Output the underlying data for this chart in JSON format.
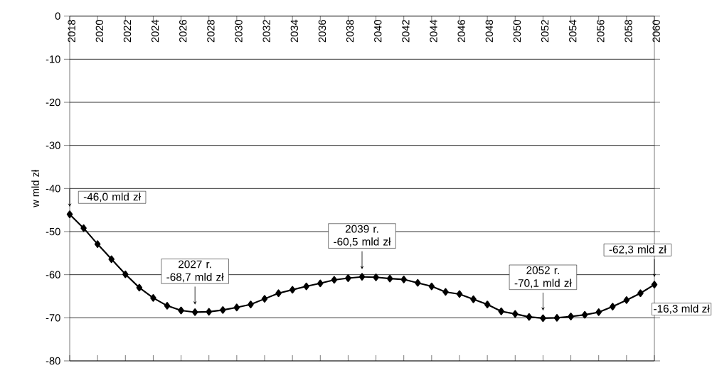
{
  "chart_data": {
    "type": "line",
    "ylabel": "w mld zł",
    "x": [
      2018,
      2019,
      2020,
      2021,
      2022,
      2023,
      2024,
      2025,
      2026,
      2027,
      2028,
      2029,
      2030,
      2031,
      2032,
      2033,
      2034,
      2035,
      2036,
      2037,
      2038,
      2039,
      2040,
      2041,
      2042,
      2043,
      2044,
      2045,
      2046,
      2047,
      2048,
      2049,
      2050,
      2051,
      2052,
      2053,
      2054,
      2055,
      2056,
      2057,
      2058,
      2059,
      2060
    ],
    "series": [
      {
        "color": "#000000",
        "values": [
          -46.0,
          -49.2,
          -52.9,
          -56.4,
          -59.9,
          -63.0,
          -65.4,
          -67.2,
          -68.3,
          -68.7,
          -68.6,
          -68.2,
          -67.6,
          -66.9,
          -65.6,
          -64.3,
          -63.5,
          -62.7,
          -62.0,
          -61.2,
          -60.8,
          -60.5,
          -60.6,
          -60.9,
          -61.1,
          -61.9,
          -62.7,
          -64.0,
          -64.5,
          -65.7,
          -66.9,
          -68.5,
          -69.1,
          -69.8,
          -70.1,
          -70.0,
          -69.7,
          -69.3,
          -68.7,
          -67.4,
          -65.9,
          -64.3,
          -62.3
        ]
      }
    ],
    "xlim": [
      2018,
      2060
    ],
    "ylim": [
      -80,
      0
    ],
    "xticks": [
      2018,
      2020,
      2022,
      2024,
      2026,
      2028,
      2030,
      2032,
      2034,
      2036,
      2038,
      2040,
      2042,
      2044,
      2046,
      2048,
      2050,
      2052,
      2054,
      2056,
      2058,
      2060
    ],
    "yticks": [
      0,
      -10,
      -20,
      -30,
      -40,
      -50,
      -60,
      -70,
      -80
    ],
    "grid": "y",
    "marker": "diamond",
    "line_style": "solid",
    "annotations": [
      {
        "text": "-46,0 mld zł",
        "x": 2018,
        "y": -46.0
      },
      {
        "text": "2027 r. -68,7 mld zł",
        "x": 2027,
        "y": -68.7
      },
      {
        "text": "2039 r. -60,5 mld zł",
        "x": 2039,
        "y": -60.5
      },
      {
        "text": "2052 r. -70,1 mld zł",
        "x": 2052,
        "y": -70.1
      },
      {
        "text": "-62,3 mld zł",
        "x": 2060,
        "y": -62.3
      },
      "-16,3 mld zł"
    ]
  }
}
